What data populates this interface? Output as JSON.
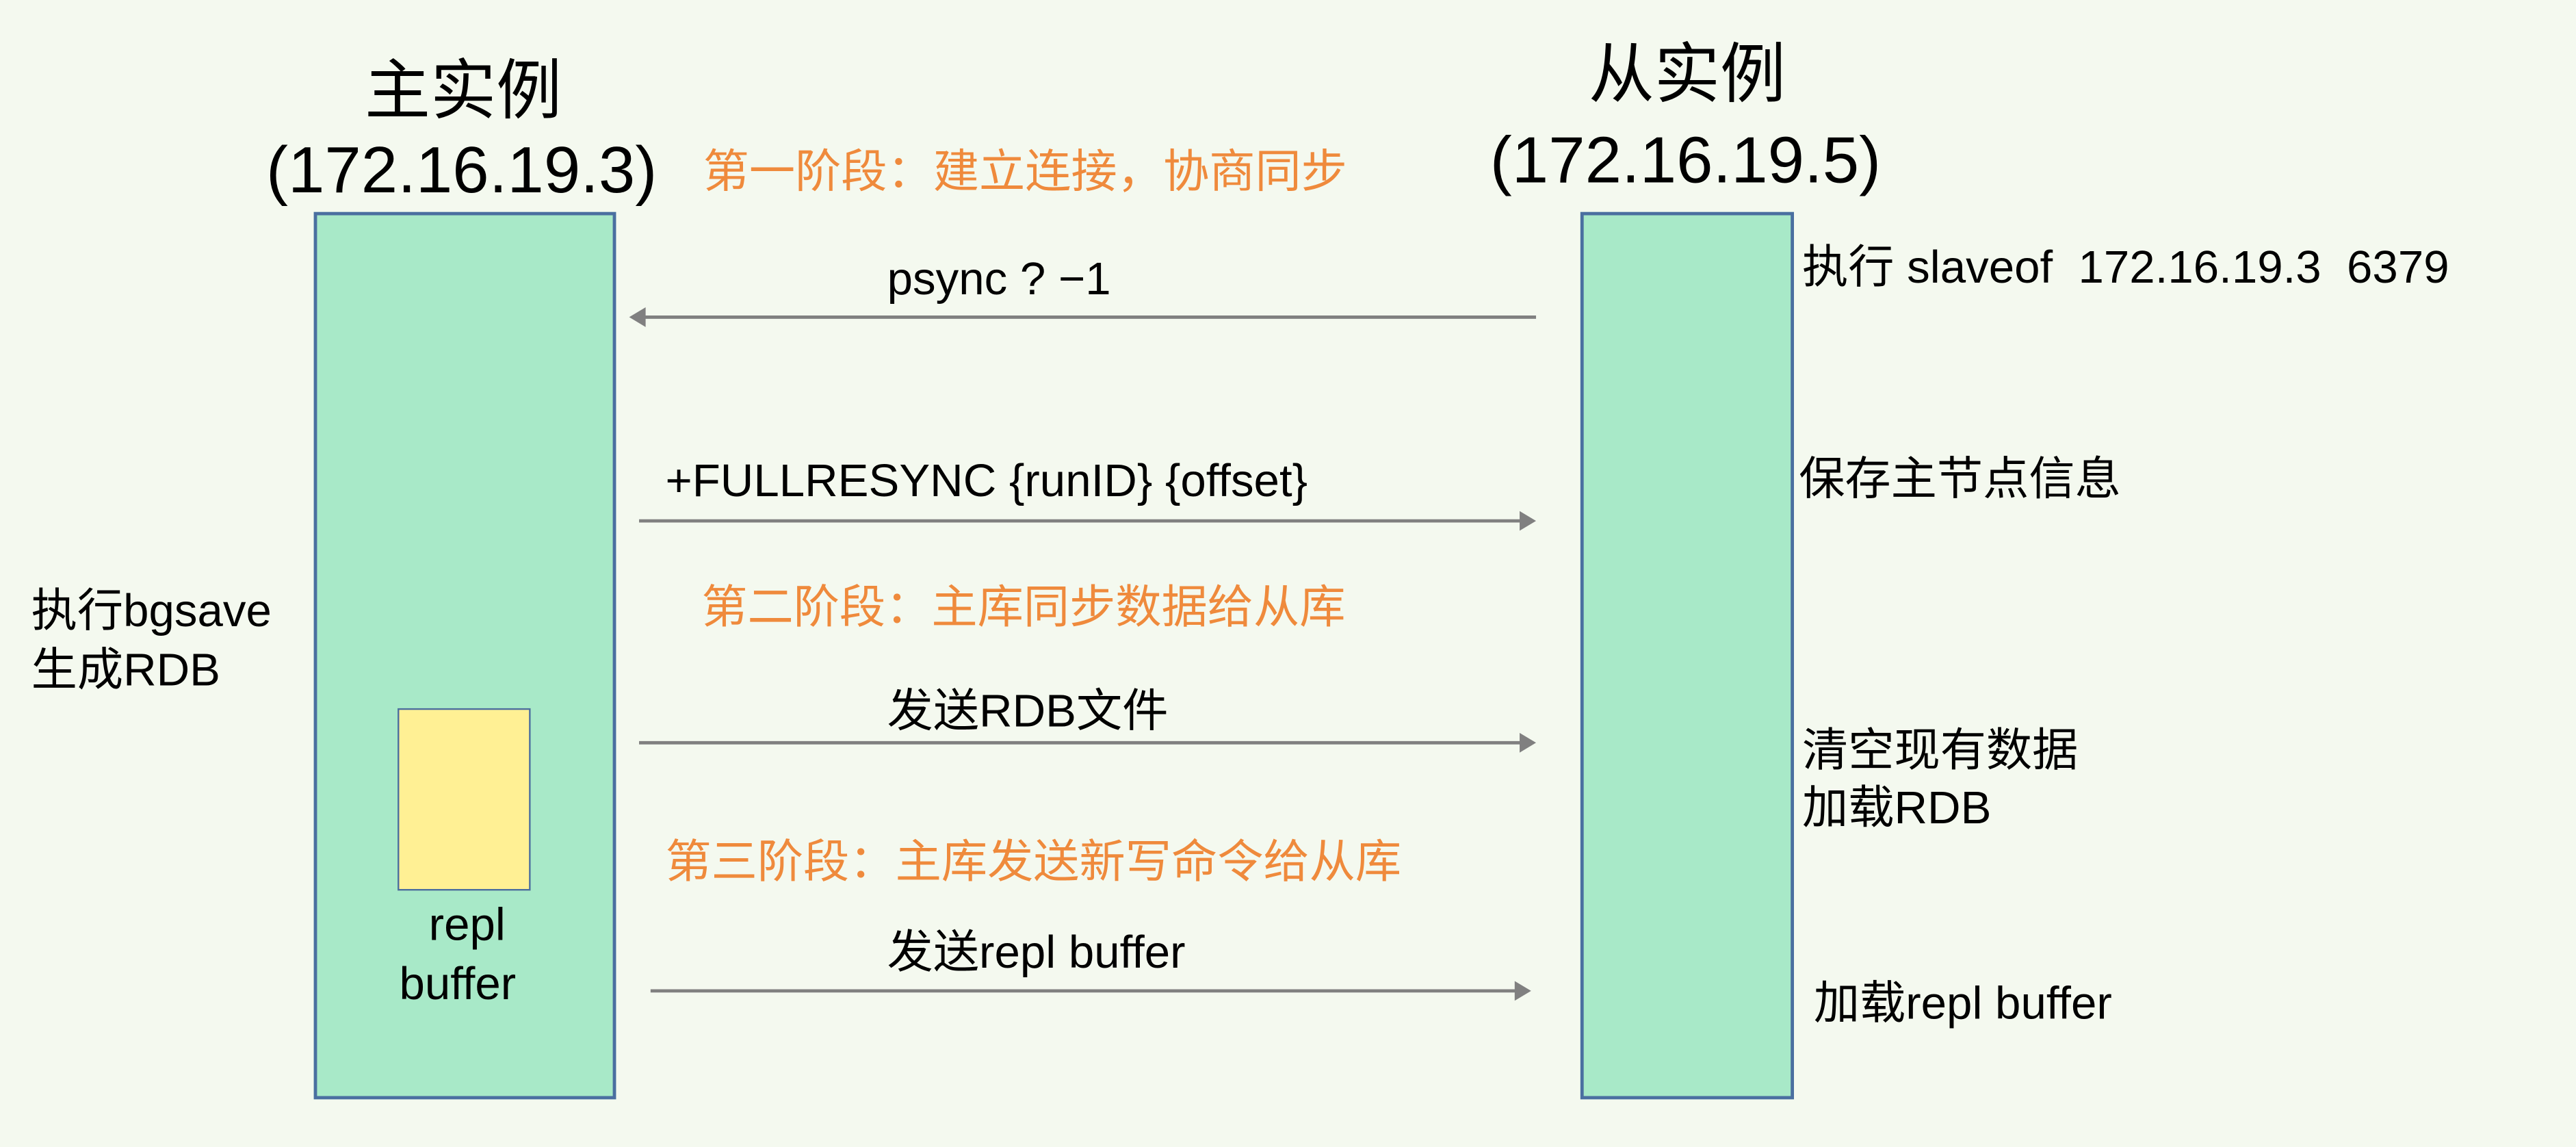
{
  "master": {
    "title": "主实例",
    "address": "(172.16.19.3)",
    "left_note": [
      "执行bgsave",
      "生成RDB"
    ],
    "buffer_label": [
      "repl",
      "buffer"
    ]
  },
  "slave": {
    "title": "从实例",
    "address": "(172.16.19.5)"
  },
  "phases": [
    "第一阶段：建立连接，协商同步",
    "第二阶段：主库同步数据给从库",
    "第三阶段：主库发送新写命令给从库"
  ],
  "messages": [
    {
      "label": "psync ? −1",
      "direction": "slave-to-master"
    },
    {
      "label": "+FULLRESYNC {runID} {offset}",
      "direction": "master-to-slave"
    },
    {
      "label": "发送RDB文件",
      "direction": "master-to-slave"
    },
    {
      "label": "发送repl buffer",
      "direction": "master-to-slave"
    }
  ],
  "slave_notes": [
    "执行 slaveof  172.16.19.3  6379",
    "保存主节点信息",
    "清空现有数据",
    "加载RDB",
    "加载repl buffer"
  ],
  "colors": {
    "background": "#f4f9ef",
    "instance_fill": "#a8e9c8",
    "instance_border": "#4a6fa0",
    "buffer_fill": "#fff094",
    "phase_text": "#ef8a3c",
    "arrow": "#808080"
  }
}
